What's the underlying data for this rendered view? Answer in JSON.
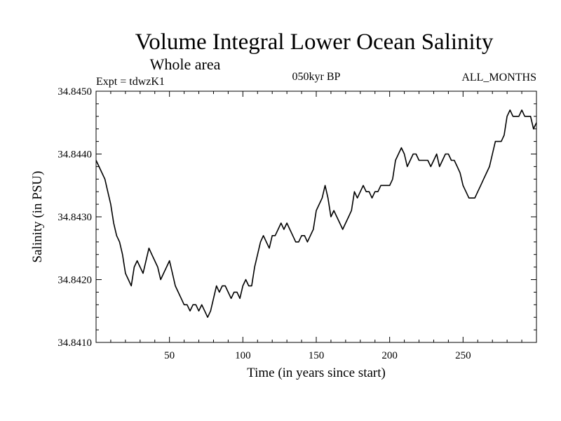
{
  "chart_data": {
    "type": "line",
    "title": "Volume Integral Lower Ocean Salinity",
    "subtitle": "Whole area",
    "experiment_label": "Expt = tdwzK1",
    "period_label": "050kyr BP",
    "months_label": "ALL_MONTHS",
    "xlabel": "Time (in years since start)",
    "ylabel": "Salinity (in PSU)",
    "xlim": [
      0,
      300
    ],
    "ylim": [
      34.841,
      34.845
    ],
    "xticks": [
      50,
      100,
      150,
      200,
      250
    ],
    "yticks": [
      34.841,
      34.842,
      34.843,
      34.844,
      34.845
    ],
    "ytick_labels": [
      "34.8410",
      "34.8420",
      "34.8430",
      "34.8440",
      "34.8450"
    ],
    "series": [
      {
        "name": "Lower ocean salinity",
        "color": "#000000",
        "x": [
          0,
          2,
          4,
          6,
          8,
          10,
          12,
          14,
          16,
          18,
          20,
          22,
          24,
          26,
          28,
          30,
          32,
          34,
          36,
          38,
          40,
          42,
          44,
          46,
          48,
          50,
          52,
          54,
          56,
          58,
          60,
          62,
          64,
          66,
          68,
          70,
          72,
          74,
          76,
          78,
          80,
          82,
          84,
          86,
          88,
          90,
          92,
          94,
          96,
          98,
          100,
          102,
          104,
          106,
          108,
          110,
          112,
          114,
          116,
          118,
          120,
          122,
          124,
          126,
          128,
          130,
          132,
          134,
          136,
          138,
          140,
          142,
          144,
          146,
          148,
          150,
          152,
          154,
          156,
          158,
          160,
          162,
          164,
          166,
          168,
          170,
          172,
          174,
          176,
          178,
          180,
          182,
          184,
          186,
          188,
          190,
          192,
          194,
          196,
          198,
          200,
          202,
          204,
          206,
          208,
          210,
          212,
          214,
          216,
          218,
          220,
          222,
          224,
          226,
          228,
          230,
          232,
          234,
          236,
          238,
          240,
          242,
          244,
          246,
          248,
          250,
          252,
          254,
          256,
          258,
          260,
          262,
          264,
          266,
          268,
          270,
          272,
          274,
          276,
          278,
          280,
          282,
          284,
          286,
          288,
          290,
          292,
          294,
          296,
          298,
          300
        ],
        "values": [
          34.8439,
          34.8438,
          34.8437,
          34.8436,
          34.8434,
          34.8432,
          34.8429,
          34.8427,
          34.8426,
          34.8424,
          34.8421,
          34.842,
          34.8419,
          34.8422,
          34.8423,
          34.8422,
          34.8421,
          34.8423,
          34.8425,
          34.8424,
          34.8423,
          34.8422,
          34.842,
          34.8421,
          34.8422,
          34.8423,
          34.8421,
          34.8419,
          34.8418,
          34.8417,
          34.8416,
          34.8416,
          34.8415,
          34.8416,
          34.8416,
          34.8415,
          34.8416,
          34.8415,
          34.8414,
          34.8415,
          34.8417,
          34.8419,
          34.8418,
          34.8419,
          34.8419,
          34.8418,
          34.8417,
          34.8418,
          34.8418,
          34.8417,
          34.8419,
          34.842,
          34.8419,
          34.8419,
          34.8422,
          34.8424,
          34.8426,
          34.8427,
          34.8426,
          34.8425,
          34.8427,
          34.8427,
          34.8428,
          34.8429,
          34.8428,
          34.8429,
          34.8428,
          34.8427,
          34.8426,
          34.8426,
          34.8427,
          34.8427,
          34.8426,
          34.8427,
          34.8428,
          34.8431,
          34.8432,
          34.8433,
          34.8435,
          34.8433,
          34.843,
          34.8431,
          34.843,
          34.8429,
          34.8428,
          34.8429,
          34.843,
          34.8431,
          34.8434,
          34.8433,
          34.8434,
          34.8435,
          34.8434,
          34.8434,
          34.8433,
          34.8434,
          34.8434,
          34.8435,
          34.8435,
          34.8435,
          34.8435,
          34.8436,
          34.8439,
          34.844,
          34.8441,
          34.844,
          34.8438,
          34.8439,
          34.844,
          34.844,
          34.8439,
          34.8439,
          34.8439,
          34.8439,
          34.8438,
          34.8439,
          34.844,
          34.8438,
          34.8439,
          34.844,
          34.844,
          34.8439,
          34.8439,
          34.8438,
          34.8437,
          34.8435,
          34.8434,
          34.8433,
          34.8433,
          34.8433,
          34.8434,
          34.8435,
          34.8436,
          34.8437,
          34.8438,
          34.844,
          34.8442,
          34.8442,
          34.8442,
          34.8443,
          34.8446,
          34.8447,
          34.8446,
          34.8446,
          34.8446,
          34.8447,
          34.8446,
          34.8446,
          34.8446,
          34.8444,
          34.8445
        ]
      }
    ]
  }
}
